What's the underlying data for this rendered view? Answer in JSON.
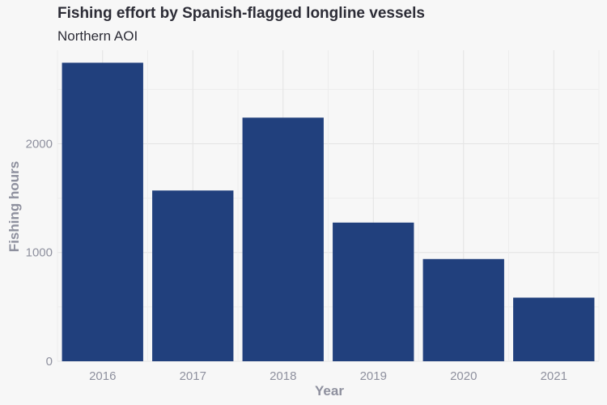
{
  "chart_data": {
    "type": "bar",
    "title": "Fishing effort by Spanish-flagged longline vessels",
    "subtitle": "Northern AOI",
    "xlabel": "Year",
    "ylabel": "Fishing hours",
    "categories": [
      "2016",
      "2017",
      "2018",
      "2019",
      "2020",
      "2021"
    ],
    "values": [
      2745,
      1570,
      2240,
      1275,
      940,
      585
    ],
    "ylim": [
      0,
      2860
    ],
    "yticks": [
      0,
      1000,
      2000
    ],
    "ytick_labels": [
      "0",
      "1000",
      "2000"
    ],
    "grid": true,
    "legend": "none",
    "colors": {
      "bar": "#21407d",
      "background": "#f7f7f7",
      "grid": "#e4e4e4",
      "text_title": "#2c2c36",
      "text_axis": "#8e909e"
    }
  }
}
